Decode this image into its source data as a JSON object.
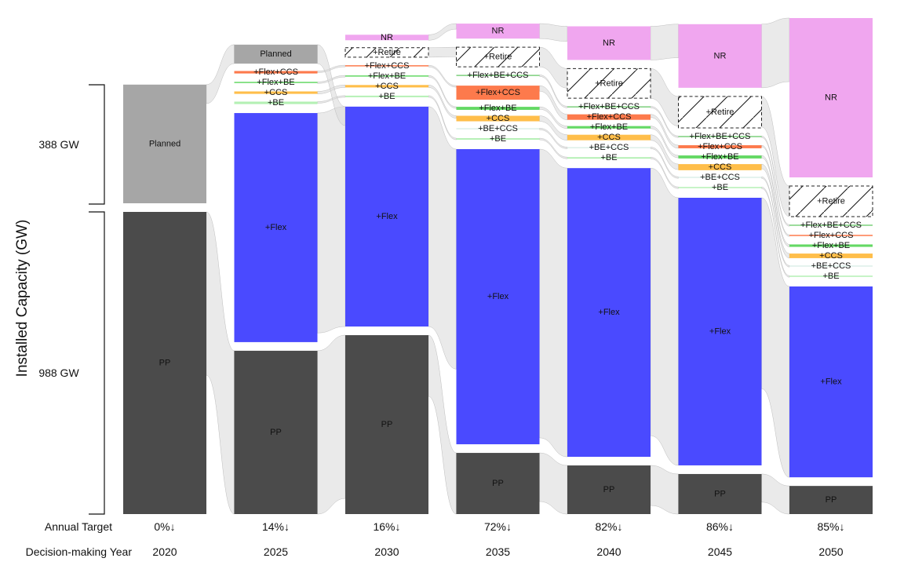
{
  "chart_data": {
    "type": "sankey",
    "ylabel": "Installed Capacity (GW)",
    "brackets": [
      {
        "label": "388 GW",
        "value": 388,
        "node": "Planned"
      },
      {
        "label": "988 GW",
        "value": 988,
        "node": "PP"
      }
    ],
    "row_labels": {
      "target": "Annual Target",
      "year": "Decision-making Year"
    },
    "colors": {
      "Planned": "#a6a6a6",
      "PP": "#4b4b4b",
      "+Flex": "#4a4aff",
      "NR": "#f0a6ef",
      "+Flex+CCS": "#fd7a4c",
      "+CCS": "#ffbe4a",
      "+Flex+BE": "#64d964",
      "+BE": "#b4f0b4",
      "+BE+CCS": "#dcefe8",
      "+Flex+BE+CCS": "#7cd07c",
      "+Retire": "#ffffff",
      "flow": "#d9d9d9"
    },
    "columns": [
      {
        "year": "2020",
        "target": "0%↓",
        "nodes": [
          {
            "name": "Planned",
            "value": 388
          },
          {
            "name": "PP",
            "value": 988
          }
        ]
      },
      {
        "year": "2025",
        "target": "14%↓",
        "nodes": [
          {
            "name": "Planned",
            "value": 62
          },
          {
            "name": "+Flex+CCS",
            "value": 8
          },
          {
            "name": "+Flex+BE",
            "value": 2
          },
          {
            "name": "+CCS",
            "value": 8
          },
          {
            "name": "+BE",
            "value": 8
          },
          {
            "name": "+Flex",
            "value": 749
          },
          {
            "name": "PP",
            "value": 534
          }
        ]
      },
      {
        "year": "2030",
        "target": "16%↓",
        "nodes": [
          {
            "name": "NR",
            "value": 18
          },
          {
            "name": "+Retire",
            "value": 31
          },
          {
            "name": "+Flex+CCS",
            "value": 2
          },
          {
            "name": "+Flex+BE",
            "value": 3
          },
          {
            "name": "+CCS",
            "value": 8
          },
          {
            "name": "+BE",
            "value": 5
          },
          {
            "name": "+Flex",
            "value": 719
          },
          {
            "name": "PP",
            "value": 585
          }
        ]
      },
      {
        "year": "2035",
        "target": "72%↓",
        "nodes": [
          {
            "name": "NR",
            "value": 49
          },
          {
            "name": "+Retire",
            "value": 64
          },
          {
            "name": "+Flex+BE+CCS",
            "value": 3
          },
          {
            "name": "+Flex+CCS",
            "value": 46
          },
          {
            "name": "+Flex+BE",
            "value": 10
          },
          {
            "name": "+CCS",
            "value": 18
          },
          {
            "name": "+BE+CCS",
            "value": 2
          },
          {
            "name": "+BE",
            "value": 5
          },
          {
            "name": "+Flex",
            "value": 965
          },
          {
            "name": "PP",
            "value": 200
          }
        ]
      },
      {
        "year": "2040",
        "target": "82%↓",
        "nodes": [
          {
            "name": "NR",
            "value": 110
          },
          {
            "name": "+Retire",
            "value": 97
          },
          {
            "name": "+Flex+BE+CCS",
            "value": 2
          },
          {
            "name": "+Flex+CCS",
            "value": 18
          },
          {
            "name": "+Flex+BE",
            "value": 8
          },
          {
            "name": "+CCS",
            "value": 18
          },
          {
            "name": "+BE+CCS",
            "value": 2
          },
          {
            "name": "+BE",
            "value": 5
          },
          {
            "name": "+Flex",
            "value": 944
          },
          {
            "name": "PP",
            "value": 159
          }
        ]
      },
      {
        "year": "2045",
        "target": "86%↓",
        "nodes": [
          {
            "name": "NR",
            "value": 208
          },
          {
            "name": "+Retire",
            "value": 103
          },
          {
            "name": "+Flex+BE+CCS",
            "value": 2
          },
          {
            "name": "+Flex+CCS",
            "value": 10
          },
          {
            "name": "+Flex+BE",
            "value": 10
          },
          {
            "name": "+CCS",
            "value": 20
          },
          {
            "name": "+BE+CCS",
            "value": 2
          },
          {
            "name": "+BE",
            "value": 3
          },
          {
            "name": "+Flex",
            "value": 875
          },
          {
            "name": "PP",
            "value": 131
          }
        ]
      },
      {
        "year": "2050",
        "target": "85%↓",
        "nodes": [
          {
            "name": "NR",
            "value": 521
          },
          {
            "name": "+Retire",
            "value": 100
          },
          {
            "name": "+Flex+BE+CCS",
            "value": 2
          },
          {
            "name": "+Flex+CCS",
            "value": 3
          },
          {
            "name": "+Flex+BE",
            "value": 8
          },
          {
            "name": "+CCS",
            "value": 15
          },
          {
            "name": "+BE+CCS",
            "value": 2
          },
          {
            "name": "+BE",
            "value": 3
          },
          {
            "name": "+Flex",
            "value": 624
          },
          {
            "name": "PP",
            "value": 92
          }
        ]
      }
    ]
  }
}
